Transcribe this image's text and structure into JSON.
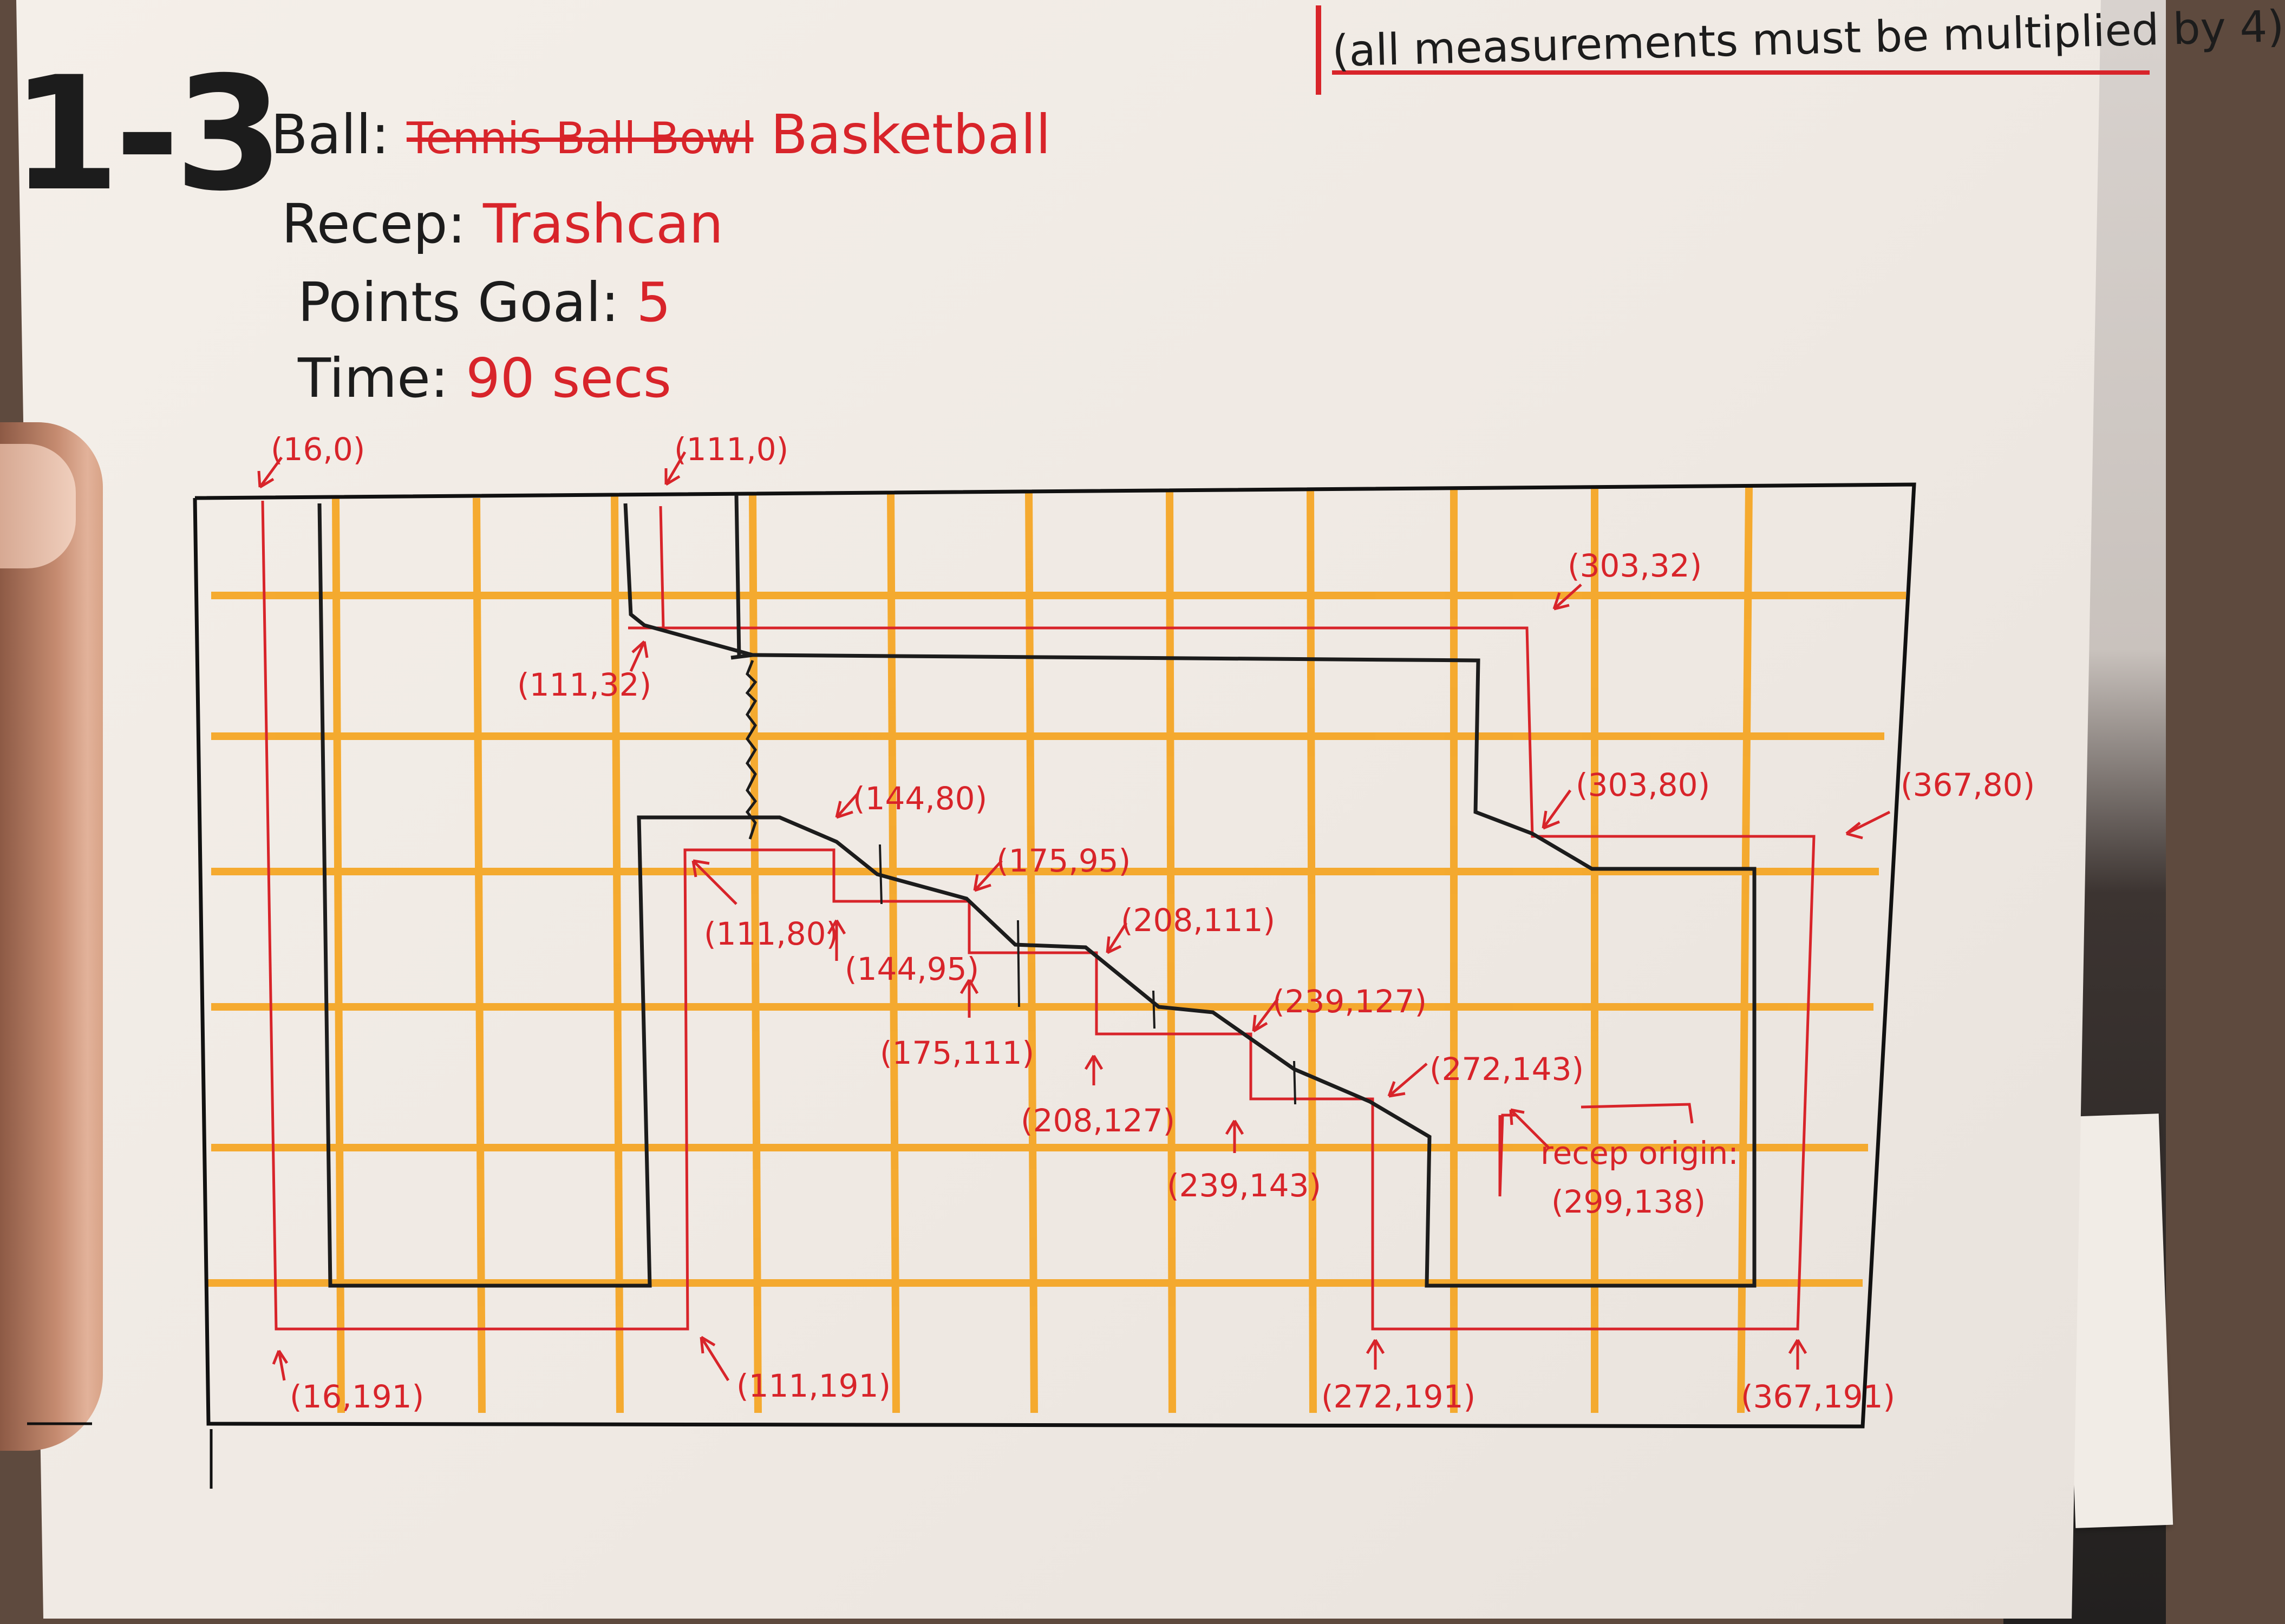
{
  "level": "1-3",
  "note": "(all measurements must be multiplied by 4)",
  "ball": {
    "label": "Ball:",
    "struck_values": "Tennis Ball Bowl",
    "value": "Basketball"
  },
  "receptacle": {
    "label": "Recep:",
    "value": "Trashcan"
  },
  "points_goal": {
    "label": "Points Goal:",
    "value": "5"
  },
  "time": {
    "label": "Time:",
    "value": "90 secs"
  },
  "colors": {
    "ink": "#1c1c1c",
    "red": "#d8242a",
    "grid": "#f5a31c"
  },
  "labels": {
    "p_16_0": "(16,0)",
    "p_111_0": "(111,0)",
    "p_111_32": "(111,32)",
    "p_303_32": "(303,32)",
    "p_144_80": "(144,80)",
    "p_175_95_top": "(175,95)",
    "p_303_80": "(303,80)",
    "p_367_80": "(367,80)",
    "p_208_111_top": "(208,111)",
    "p_239_127_top": "(239,127)",
    "p_272_143_top": "(272,143)",
    "p_111_80": "(111,80)",
    "p_144_95": "(144,95)",
    "p_175_111": "(175,111)",
    "p_208_127": "(208,127)",
    "p_239_143": "(239,143)",
    "recep_origin_label": "recep origin:",
    "recep_origin_value": "(299,138)",
    "p_16_191": "(16,191)",
    "p_111_191": "(111,191)",
    "p_272_191": "(272,191)",
    "p_367_191": "(367,191)"
  }
}
